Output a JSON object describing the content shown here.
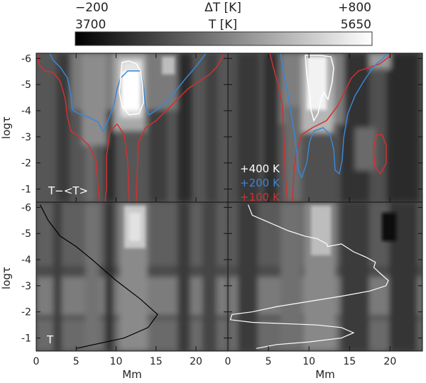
{
  "colorbar": {
    "delta_min": "−200",
    "delta_label": "ΔT [K]",
    "delta_max": "+800",
    "temp_min": "3700",
    "temp_label": "T [K]",
    "temp_max": "5650"
  },
  "panels": {
    "top_left_label": "T−<T>",
    "bottom_left_label": "T",
    "contour_legend": [
      {
        "text": "+400 K",
        "color": "#ffffff"
      },
      {
        "text": "+200 K",
        "color": "#3a86d8"
      },
      {
        "text": "+100 K",
        "color": "#d23030"
      }
    ]
  },
  "axes": {
    "xlabel": "Mm",
    "ylabel": "logτ",
    "x_ticks": [
      "0",
      "5",
      "10",
      "15",
      "20"
    ],
    "y_ticks": [
      "-6",
      "-5",
      "-4",
      "-3",
      "-2",
      "-1"
    ]
  },
  "chart_data": [
    {
      "type": "heatmap",
      "panel": "top-left",
      "annotation": "T−<T>",
      "xlabel": "",
      "ylabel": "logτ",
      "xlim": [
        0,
        24
      ],
      "ylim": [
        -0.5,
        -6.2
      ],
      "colorscale": "grayscale",
      "colorbar_range": [
        -200,
        800
      ],
      "contours": [
        {
          "level": 100,
          "color": "#d23030"
        },
        {
          "level": 200,
          "color": "#3a86d8"
        },
        {
          "level": 400,
          "color": "#ffffff"
        }
      ]
    },
    {
      "type": "heatmap",
      "panel": "top-right",
      "xlabel": "",
      "ylabel": "",
      "xlim": [
        0,
        24
      ],
      "ylim": [
        -0.5,
        -6.2
      ],
      "colorscale": "grayscale",
      "colorbar_range": [
        -200,
        800
      ],
      "contours": [
        {
          "level": 100,
          "color": "#d23030"
        },
        {
          "level": 200,
          "color": "#3a86d8"
        },
        {
          "level": 400,
          "color": "#ffffff"
        }
      ]
    },
    {
      "type": "heatmap",
      "panel": "bottom-left",
      "annotation": "T",
      "xlabel": "Mm",
      "ylabel": "logτ",
      "xlim": [
        0,
        24
      ],
      "ylim": [
        -0.5,
        -6.2
      ],
      "colorscale": "grayscale",
      "colorbar_range": [
        3700,
        5650
      ],
      "profile_line": {
        "color": "#000000",
        "x": [
          0.5,
          1.5,
          3,
          4.5,
          5,
          7,
          10,
          13,
          15.2,
          14,
          11,
          8,
          5
        ],
        "y": [
          -6.1,
          -5.5,
          -4.9,
          -4.6,
          -4.5,
          -4.0,
          -3.2,
          -2.5,
          -1.9,
          -1.4,
          -1.0,
          -0.8,
          -0.6
        ]
      }
    },
    {
      "type": "heatmap",
      "panel": "bottom-right",
      "xlabel": "Mm",
      "ylabel": "",
      "xlim": [
        0,
        24
      ],
      "ylim": [
        -0.5,
        -6.2
      ],
      "colorscale": "grayscale",
      "colorbar_range": [
        3700,
        5650
      ],
      "profile_line": {
        "color": "#ffffff",
        "x": [
          2.5,
          3,
          4.5,
          6,
          7.5,
          9.5,
          11,
          12.2,
          12.3,
          14,
          15.5,
          17,
          18.2,
          18,
          18.7,
          19.8,
          19.5,
          17.5,
          14,
          10,
          6,
          3,
          0.5,
          0.3,
          3,
          7,
          11,
          14,
          15.5,
          14,
          10,
          6,
          3.5
        ],
        "y": [
          -6.1,
          -5.7,
          -5.5,
          -5.3,
          -5.1,
          -4.9,
          -4.8,
          -4.6,
          -4.5,
          -4.6,
          -4.3,
          -4.1,
          -3.9,
          -3.7,
          -3.5,
          -3.2,
          -3.0,
          -2.8,
          -2.6,
          -2.4,
          -2.2,
          -2.0,
          -1.9,
          -1.7,
          -1.6,
          -1.55,
          -1.5,
          -1.4,
          -1.2,
          -1.0,
          -0.85,
          -0.75,
          -0.6
        ]
      }
    }
  ]
}
